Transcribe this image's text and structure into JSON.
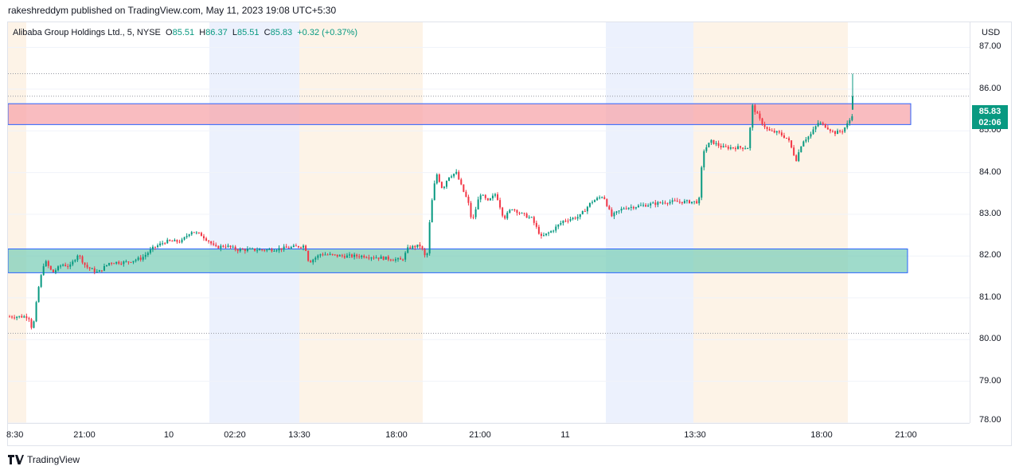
{
  "header": {
    "publisher_line": "rakeshreddym published on TradingView.com, May 11, 2023 19:08 UTC+5:30"
  },
  "legend": {
    "symbol": "Alibaba Group Holdings Ltd., 5, NYSE",
    "open_label": "O",
    "open": "85.51",
    "high_label": "H",
    "high": "86.37",
    "low_label": "L",
    "low": "85.51",
    "close_label": "C",
    "close": "85.83",
    "change": "+0.32 (+0.37%)"
  },
  "price_scale": {
    "currency": "USD",
    "ticks": [
      "87.00",
      "86.00",
      "85.00",
      "84.00",
      "83.00",
      "82.00",
      "81.00",
      "80.00",
      "79.00",
      "78.00"
    ],
    "last_price": "85.83",
    "countdown": "02:06"
  },
  "time_axis": {
    "ticks": [
      "8:30",
      "21:00",
      "10",
      "02:20",
      "13:30",
      "18:00",
      "21:00",
      "11",
      "13:30",
      "18:00",
      "21:00"
    ]
  },
  "footer": {
    "brand": "TradingView"
  },
  "colors": {
    "up": "#089981",
    "down": "#f23645",
    "supply_zone": "#f7a6ab",
    "demand_zone": "#7fcfb9",
    "zone_border": "#2962ff"
  },
  "chart_data": {
    "type": "candlestick",
    "symbol": "Alibaba Group Holdings Ltd., 5, NYSE",
    "ylim": [
      78,
      87.6
    ],
    "zones": [
      {
        "type": "supply",
        "from": 85.15,
        "to": 85.65
      },
      {
        "type": "demand",
        "from": 81.6,
        "to": 82.17
      }
    ],
    "reference_levels": [
      86.37,
      85.83,
      80.15
    ],
    "path": [
      [
        0,
        80.55
      ],
      [
        28,
        80.55
      ],
      [
        33,
        80.2
      ],
      [
        40,
        81.2
      ],
      [
        48,
        81.9
      ],
      [
        58,
        81.6
      ],
      [
        70,
        81.8
      ],
      [
        80,
        81.75
      ],
      [
        90,
        82.05
      ],
      [
        100,
        81.75
      ],
      [
        115,
        81.6
      ],
      [
        130,
        81.85
      ],
      [
        150,
        81.85
      ],
      [
        170,
        81.95
      ],
      [
        185,
        82.2
      ],
      [
        200,
        82.35
      ],
      [
        220,
        82.35
      ],
      [
        232,
        82.6
      ],
      [
        245,
        82.5
      ],
      [
        255,
        82.35
      ],
      [
        262,
        82.2
      ],
      [
        275,
        82.25
      ],
      [
        290,
        82.15
      ],
      [
        305,
        82.15
      ],
      [
        330,
        82.15
      ],
      [
        355,
        82.2
      ],
      [
        375,
        82.25
      ],
      [
        380,
        81.85
      ],
      [
        395,
        82.05
      ],
      [
        420,
        82.0
      ],
      [
        450,
        82.0
      ],
      [
        475,
        81.95
      ],
      [
        497,
        81.9
      ],
      [
        505,
        82.2
      ],
      [
        520,
        82.25
      ],
      [
        528,
        81.9
      ],
      [
        533,
        83.1
      ],
      [
        540,
        84.0
      ],
      [
        548,
        83.6
      ],
      [
        555,
        83.9
      ],
      [
        565,
        84.0
      ],
      [
        573,
        83.6
      ],
      [
        580,
        83.3
      ],
      [
        585,
        82.8
      ],
      [
        595,
        83.5
      ],
      [
        605,
        83.3
      ],
      [
        615,
        83.5
      ],
      [
        625,
        82.9
      ],
      [
        635,
        83.15
      ],
      [
        648,
        83.0
      ],
      [
        660,
        82.9
      ],
      [
        672,
        82.45
      ],
      [
        685,
        82.6
      ],
      [
        700,
        82.85
      ],
      [
        720,
        82.95
      ],
      [
        735,
        83.3
      ],
      [
        750,
        83.45
      ],
      [
        760,
        82.95
      ],
      [
        775,
        83.15
      ],
      [
        795,
        83.2
      ],
      [
        830,
        83.3
      ],
      [
        870,
        83.3
      ],
      [
        875,
        84.5
      ],
      [
        885,
        84.75
      ],
      [
        900,
        84.6
      ],
      [
        920,
        84.6
      ],
      [
        932,
        84.6
      ],
      [
        937,
        85.6
      ],
      [
        947,
        85.25
      ],
      [
        957,
        85.0
      ],
      [
        970,
        84.95
      ],
      [
        982,
        84.8
      ],
      [
        992,
        84.3
      ],
      [
        1000,
        84.75
      ],
      [
        1010,
        84.9
      ],
      [
        1020,
        85.2
      ],
      [
        1030,
        85.1
      ],
      [
        1040,
        84.95
      ],
      [
        1050,
        85.0
      ],
      [
        1058,
        85.2
      ],
      [
        1065,
        85.5
      ],
      [
        1070,
        85.83
      ]
    ]
  }
}
